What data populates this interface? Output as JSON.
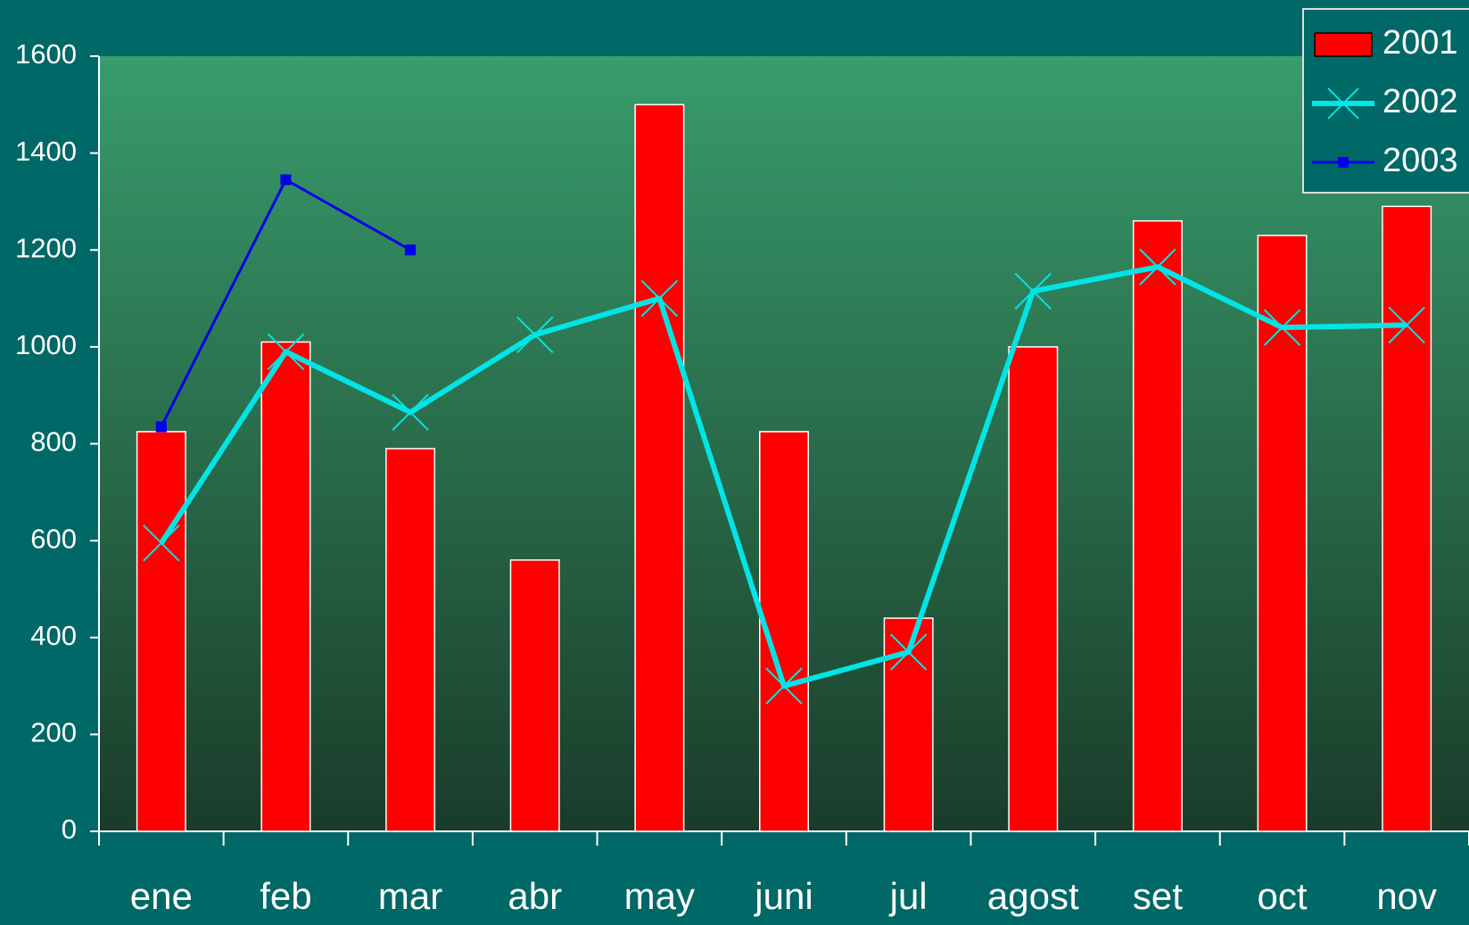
{
  "chart_data": {
    "type": "combo",
    "categories": [
      "ene",
      "feb",
      "mar",
      "abr",
      "may",
      "juni",
      "jul",
      "agost",
      "set",
      "oct",
      "nov"
    ],
    "series": [
      {
        "name": "2001",
        "type": "bar",
        "color": "#ff0000",
        "values": [
          825,
          1010,
          790,
          560,
          1500,
          825,
          440,
          1000,
          1260,
          1230,
          1290
        ]
      },
      {
        "name": "2002",
        "type": "line",
        "marker": "x",
        "color": "#00e5e5",
        "values": [
          595,
          990,
          865,
          1025,
          1100,
          300,
          370,
          1115,
          1165,
          1040,
          1045
        ]
      },
      {
        "name": "2003",
        "type": "line",
        "marker": "square",
        "color": "#0000ee",
        "values": [
          835,
          1345,
          1200,
          null,
          null,
          null,
          null,
          null,
          null,
          null,
          null
        ]
      }
    ],
    "ylim": [
      0,
      1600
    ],
    "yticks": [
      0,
      200,
      400,
      600,
      800,
      1000,
      1200,
      1400,
      1600
    ],
    "legend": "top-right"
  }
}
